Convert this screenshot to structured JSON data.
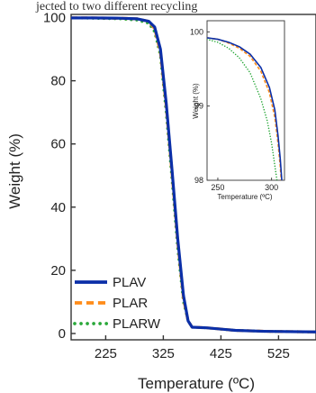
{
  "caption": "jected to two different recycling",
  "chart_data": [
    {
      "type": "line",
      "xlabel": "Temperature (ºC)",
      "ylabel": "Weight (%)",
      "xlim": [
        165,
        590
      ],
      "ylim": [
        -2,
        101
      ],
      "x_ticks": [
        225,
        325,
        425,
        525
      ],
      "y_ticks": [
        0,
        20,
        40,
        60,
        80,
        100
      ],
      "x_tick_labels": [
        "225",
        "325",
        "425",
        "525"
      ],
      "y_tick_labels": [
        "0",
        "20",
        "40",
        "60",
        "80",
        "100"
      ],
      "legend_position": "bottom-left",
      "series": [
        {
          "name": "PLAV",
          "color": "#0b2fa8",
          "style": "solid",
          "points": [
            [
              165,
              99.9
            ],
            [
              200,
              99.9
            ],
            [
              250,
              99.8
            ],
            [
              280,
              99.6
            ],
            [
              300,
              98.8
            ],
            [
              310,
              97
            ],
            [
              320,
              90
            ],
            [
              330,
              73
            ],
            [
              340,
              52
            ],
            [
              350,
              30
            ],
            [
              360,
              12
            ],
            [
              368,
              4
            ],
            [
              375,
              2
            ],
            [
              400,
              1.8
            ],
            [
              450,
              1
            ],
            [
              500,
              0.7
            ],
            [
              590,
              0.5
            ]
          ]
        },
        {
          "name": "PLAR",
          "color": "#ff8c1a",
          "style": "dashed",
          "points": [
            [
              165,
              99.9
            ],
            [
              200,
              99.9
            ],
            [
              250,
              99.8
            ],
            [
              280,
              99.6
            ],
            [
              300,
              98.8
            ],
            [
              310,
              96.5
            ],
            [
              320,
              89
            ],
            [
              330,
              72
            ],
            [
              340,
              51
            ],
            [
              350,
              29
            ],
            [
              360,
              11
            ],
            [
              368,
              4
            ],
            [
              375,
              2
            ],
            [
              400,
              1.8
            ],
            [
              450,
              1
            ],
            [
              500,
              0.7
            ],
            [
              590,
              0.5
            ]
          ]
        },
        {
          "name": "PLARW",
          "color": "#2aa83a",
          "style": "dotted",
          "points": [
            [
              165,
              99.9
            ],
            [
              200,
              99.8
            ],
            [
              250,
              99.6
            ],
            [
              280,
              99.2
            ],
            [
              300,
              98.2
            ],
            [
              310,
              95.5
            ],
            [
              320,
              88
            ],
            [
              330,
              70
            ],
            [
              340,
              49
            ],
            [
              350,
              27
            ],
            [
              360,
              10
            ],
            [
              368,
              4
            ],
            [
              375,
              2
            ],
            [
              400,
              1.8
            ],
            [
              450,
              1
            ],
            [
              500,
              0.7
            ],
            [
              590,
              0.5
            ]
          ]
        }
      ]
    },
    {
      "type": "line",
      "xlabel": "Temperature (ºC)",
      "ylabel": "Weight (%)",
      "xlim": [
        240,
        312
      ],
      "ylim": [
        98,
        100.15
      ],
      "x_ticks": [
        250,
        300
      ],
      "y_ticks": [
        98,
        99,
        100
      ],
      "x_tick_labels": [
        "250",
        "300"
      ],
      "y_tick_labels": [
        "98",
        "99",
        "100"
      ],
      "series": [
        {
          "name": "PLAV",
          "color": "#0b2fa8",
          "style": "solid",
          "points": [
            [
              240,
              99.92
            ],
            [
              250,
              99.9
            ],
            [
              260,
              99.86
            ],
            [
              270,
              99.8
            ],
            [
              280,
              99.7
            ],
            [
              290,
              99.52
            ],
            [
              298,
              99.25
            ],
            [
              303,
              98.95
            ],
            [
              306,
              98.6
            ],
            [
              308,
              98.3
            ],
            [
              309.5,
              98.0
            ]
          ]
        },
        {
          "name": "PLAR",
          "color": "#ff8c1a",
          "style": "dashed",
          "points": [
            [
              240,
              99.92
            ],
            [
              250,
              99.9
            ],
            [
              260,
              99.85
            ],
            [
              270,
              99.78
            ],
            [
              280,
              99.67
            ],
            [
              290,
              99.47
            ],
            [
              298,
              99.18
            ],
            [
              303,
              98.85
            ],
            [
              306,
              98.5
            ],
            [
              308,
              98.2
            ],
            [
              309,
              98.0
            ]
          ]
        },
        {
          "name": "PLARW",
          "color": "#2aa83a",
          "style": "dotted",
          "points": [
            [
              240,
              99.9
            ],
            [
              250,
              99.86
            ],
            [
              260,
              99.78
            ],
            [
              270,
              99.65
            ],
            [
              280,
              99.45
            ],
            [
              290,
              99.1
            ],
            [
              296,
              98.8
            ],
            [
              300,
              98.5
            ],
            [
              303,
              98.2
            ],
            [
              305,
              98.0
            ]
          ]
        }
      ]
    }
  ]
}
